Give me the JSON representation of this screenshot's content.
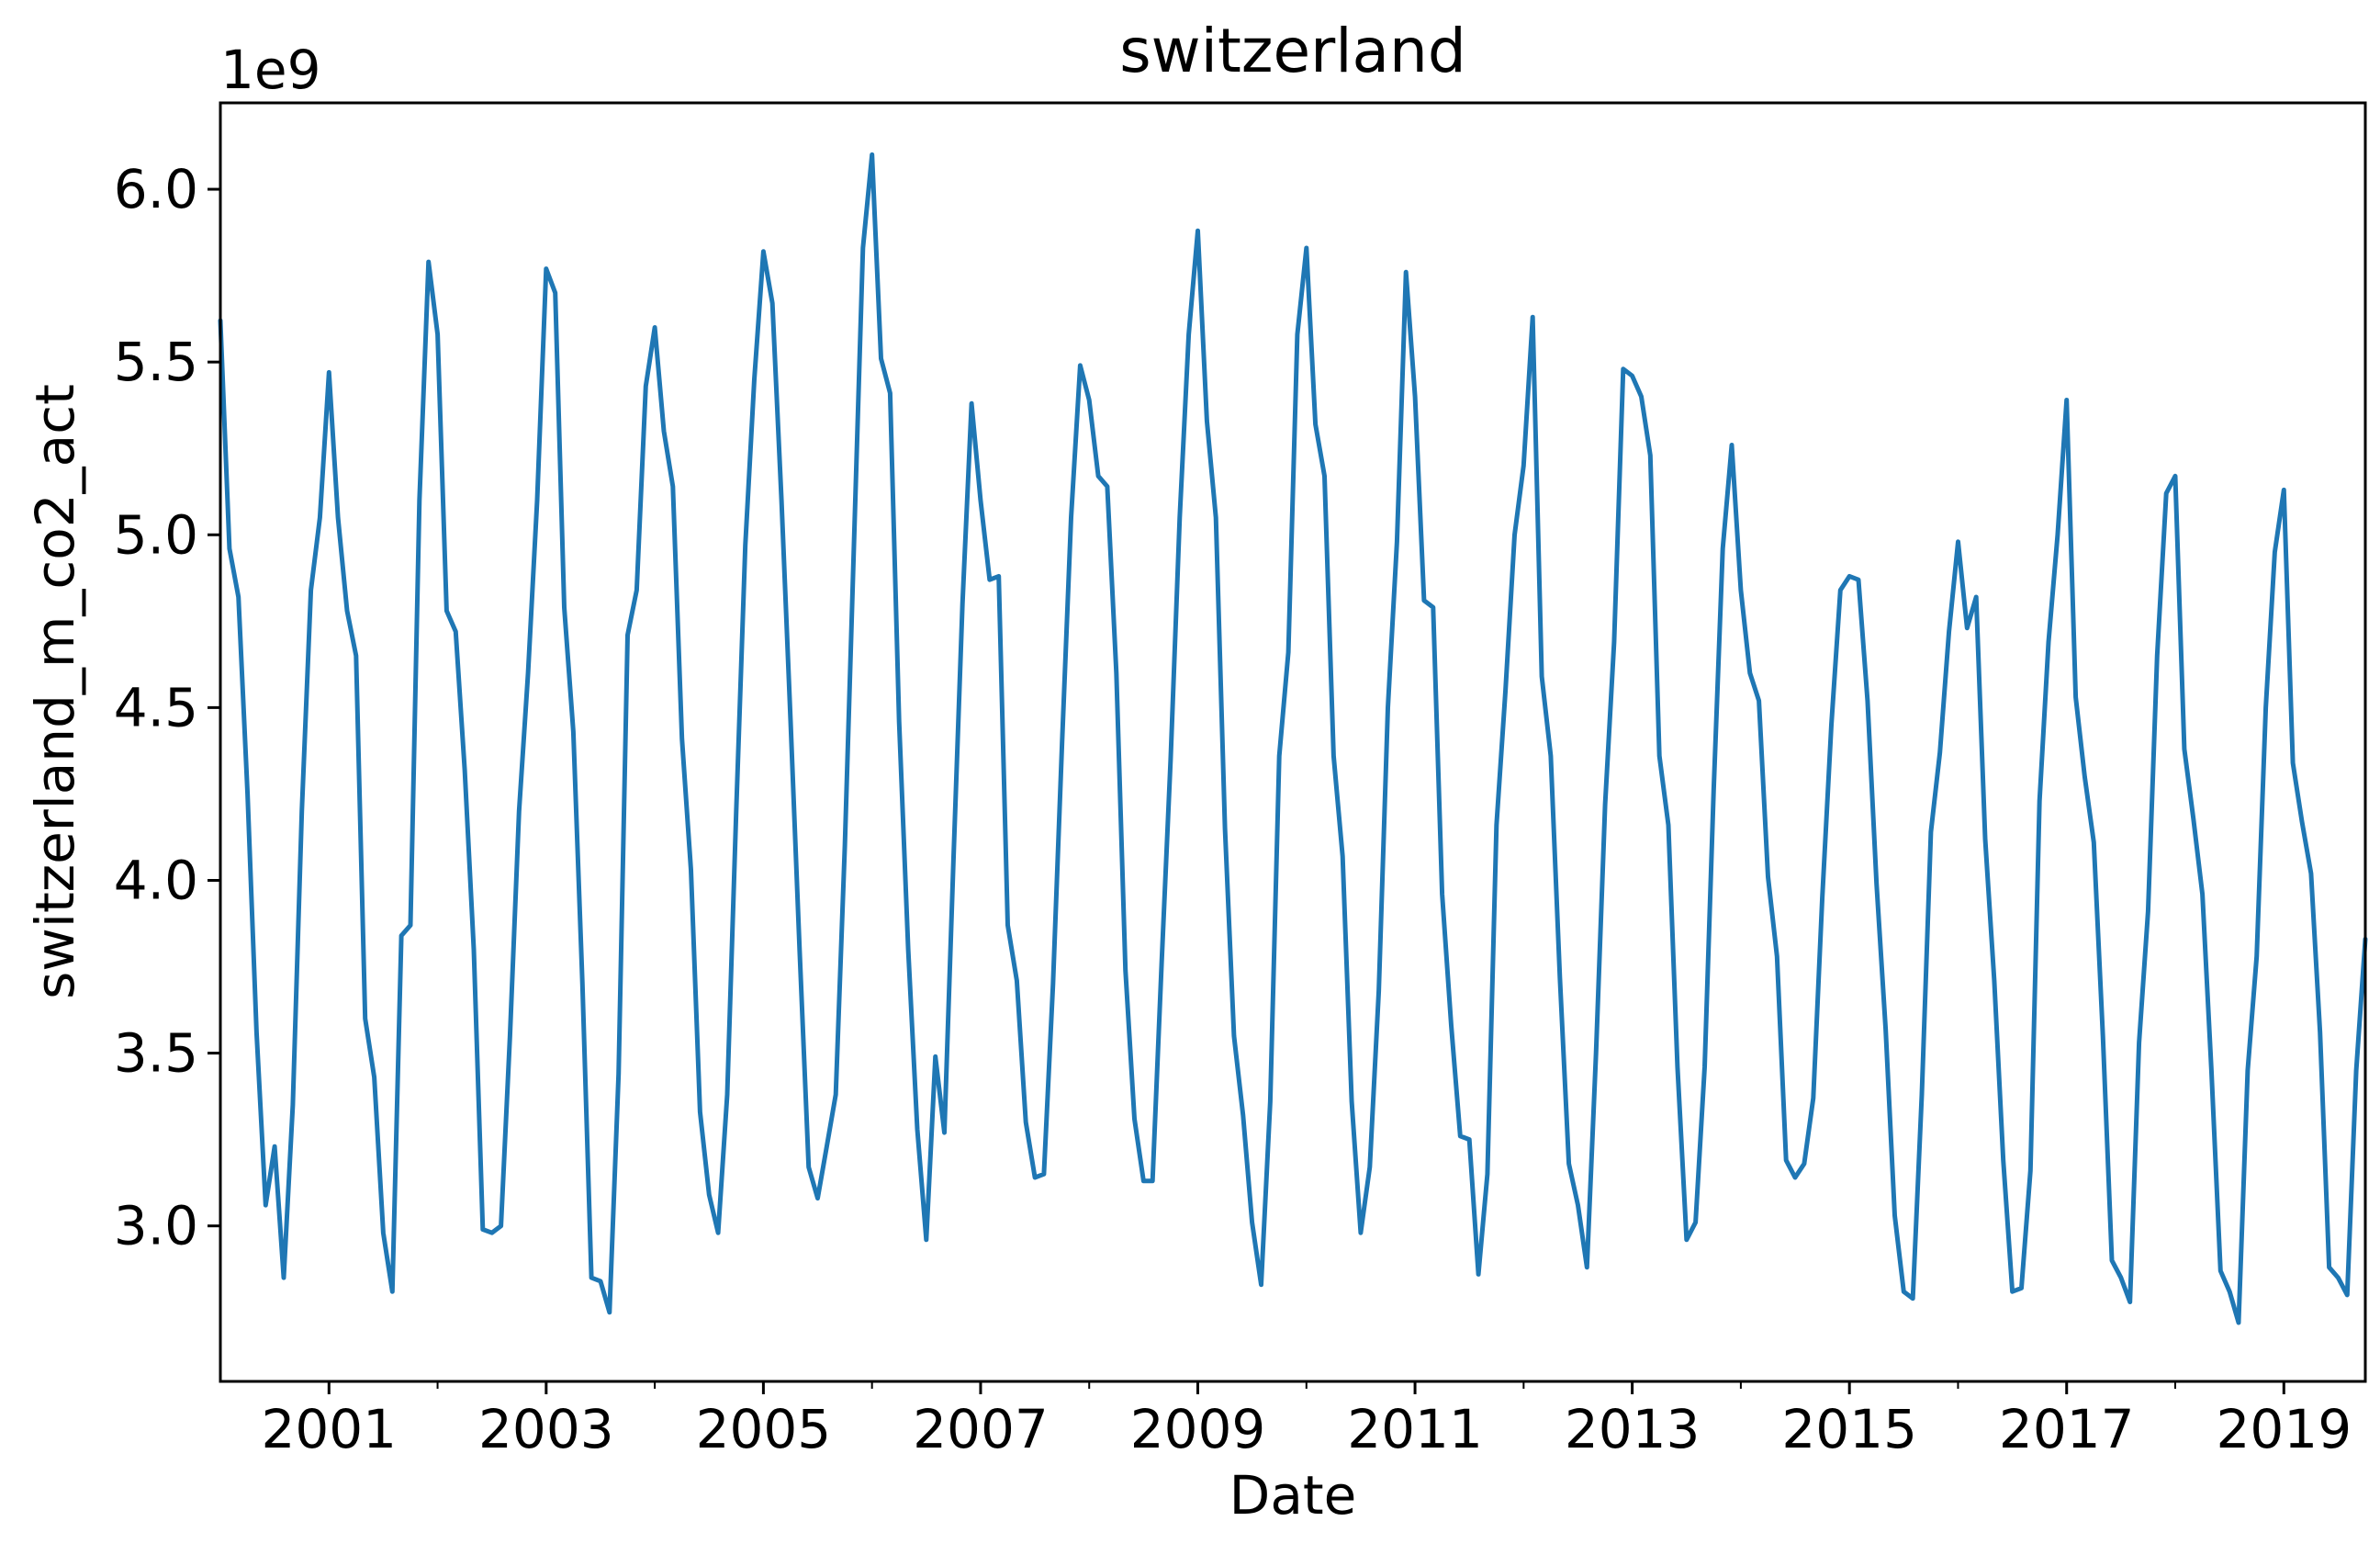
{
  "chart_data": {
    "type": "line",
    "title": "switzerland",
    "xlabel": "Date",
    "ylabel": "switzerland_m_co2_act",
    "y_offset_label": "1e9",
    "y_scale": 1000000000,
    "xlim": [
      "2000-01",
      "2019-10"
    ],
    "ylim": [
      2.55,
      6.25
    ],
    "x_ticks": [
      {
        "date": "2001-01",
        "label": "2001"
      },
      {
        "date": "2003-01",
        "label": "2003"
      },
      {
        "date": "2005-01",
        "label": "2005"
      },
      {
        "date": "2007-01",
        "label": "2007"
      },
      {
        "date": "2009-01",
        "label": "2009"
      },
      {
        "date": "2011-01",
        "label": "2011"
      },
      {
        "date": "2013-01",
        "label": "2013"
      },
      {
        "date": "2015-01",
        "label": "2015"
      },
      {
        "date": "2017-01",
        "label": "2017"
      },
      {
        "date": "2019-01",
        "label": "2019"
      }
    ],
    "x_minor_ticks": [
      "2002-01",
      "2004-01",
      "2006-01",
      "2008-01",
      "2010-01",
      "2012-01",
      "2014-01",
      "2016-01",
      "2018-01"
    ],
    "y_ticks": [
      {
        "value": 3.0,
        "label": "3.0"
      },
      {
        "value": 3.5,
        "label": "3.5"
      },
      {
        "value": 4.0,
        "label": "4.0"
      },
      {
        "value": 4.5,
        "label": "4.5"
      },
      {
        "value": 5.0,
        "label": "5.0"
      },
      {
        "value": 5.5,
        "label": "5.5"
      },
      {
        "value": 6.0,
        "label": "6.0"
      }
    ],
    "grid": false,
    "colors": {
      "line": "#1f77b4"
    },
    "start": "2000-01",
    "frequency": "monthly",
    "values": [
      5.62,
      4.96,
      4.82,
      4.25,
      3.56,
      3.06,
      3.23,
      2.85,
      3.35,
      4.2,
      4.84,
      5.05,
      5.47,
      5.05,
      4.78,
      4.65,
      3.6,
      3.43,
      2.98,
      2.81,
      3.84,
      3.87,
      5.1,
      5.79,
      5.58,
      4.78,
      4.72,
      4.32,
      3.8,
      2.99,
      2.98,
      3.0,
      3.55,
      4.2,
      4.6,
      5.1,
      5.77,
      5.7,
      4.79,
      4.43,
      3.7,
      2.85,
      2.84,
      2.75,
      3.44,
      4.71,
      4.84,
      5.43,
      5.6,
      5.3,
      5.14,
      4.41,
      4.03,
      3.33,
      3.09,
      2.98,
      3.38,
      4.2,
      4.97,
      5.45,
      5.82,
      5.67,
      5.1,
      4.46,
      3.8,
      3.17,
      3.08,
      3.23,
      3.38,
      4.1,
      4.97,
      5.83,
      6.1,
      5.51,
      5.41,
      4.46,
      3.8,
      3.28,
      2.96,
      3.49,
      3.27,
      4.06,
      4.8,
      5.38,
      5.1,
      4.87,
      4.88,
      3.87,
      3.71,
      3.3,
      3.14,
      3.15,
      3.7,
      4.4,
      5.05,
      5.49,
      5.39,
      5.17,
      5.14,
      4.6,
      3.74,
      3.31,
      3.13,
      3.13,
      3.76,
      4.35,
      5.05,
      5.58,
      5.88,
      5.33,
      5.05,
      4.15,
      3.55,
      3.32,
      3.01,
      2.83,
      3.36,
      4.36,
      4.66,
      5.58,
      5.83,
      5.32,
      5.17,
      4.36,
      4.07,
      3.36,
      2.98,
      3.17,
      3.68,
      4.5,
      4.98,
      5.76,
      5.4,
      4.81,
      4.79,
      3.96,
      3.58,
      3.26,
      3.25,
      2.86,
      3.15,
      4.16,
      4.55,
      5.0,
      5.2,
      5.63,
      4.59,
      4.36,
      3.72,
      3.18,
      3.06,
      2.88,
      3.5,
      4.22,
      4.69,
      5.48,
      5.46,
      5.4,
      5.23,
      4.36,
      4.16,
      3.46,
      2.96,
      3.01,
      3.46,
      4.26,
      4.96,
      5.26,
      4.84,
      4.6,
      4.52,
      4.01,
      3.78,
      3.19,
      3.14,
      3.18,
      3.37,
      3.95,
      4.45,
      4.84,
      4.88,
      4.87,
      4.52,
      3.99,
      3.57,
      3.03,
      2.81,
      2.79,
      3.38,
      4.14,
      4.37,
      4.72,
      4.98,
      4.73,
      4.82,
      4.12,
      3.71,
      3.19,
      2.81,
      2.82,
      3.16,
      4.23,
      4.69,
      5.0,
      5.39,
      4.53,
      4.3,
      4.11,
      3.55,
      2.9,
      2.85,
      2.78,
      3.53,
      3.91,
      4.65,
      5.12,
      5.17,
      4.38,
      4.18,
      3.96,
      3.45,
      2.87,
      2.81,
      2.72,
      3.45,
      3.78,
      4.5,
      4.95,
      5.13,
      4.34,
      4.17,
      4.02,
      3.56,
      2.88,
      2.85,
      2.8,
      3.45,
      3.83
    ]
  }
}
